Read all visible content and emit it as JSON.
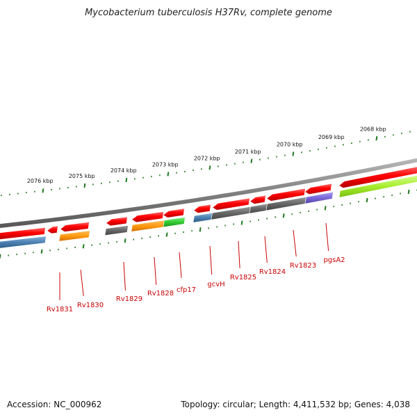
{
  "title": "Mycobacterium tuberculosis H37Rv, complete genome",
  "footer": {
    "accession": "Accession: NC_000962",
    "summary": "Topology: circular; Length: 4,411,532 bp; Genes: 4,038"
  },
  "ruler_labels": [
    "2068 kbp",
    "2069 kbp",
    "2070 kbp",
    "2071 kbp",
    "2072 kbp",
    "2073 kbp",
    "2074 kbp",
    "2075 kbp",
    "2076 kbp"
  ],
  "gene_labels": [
    "Rv1831",
    "Rv1830",
    "Rv1829",
    "Rv1828",
    "cfp17",
    "gcvH",
    "Rv1825",
    "Rv1824",
    "Rv1823",
    "pgsA2"
  ],
  "colors": {
    "gene_forward": "#ff0000",
    "cog_gray": "#666666",
    "cog_blue": "#4a7fb0",
    "cog_orange": "#ff9a10",
    "cog_green": "#33cc33",
    "cog_purple": "#7b68d8",
    "cog_lime": "#a8ee30",
    "backbone": "#888888",
    "ruler": "#1e7a1e",
    "label": "#c80000"
  }
}
